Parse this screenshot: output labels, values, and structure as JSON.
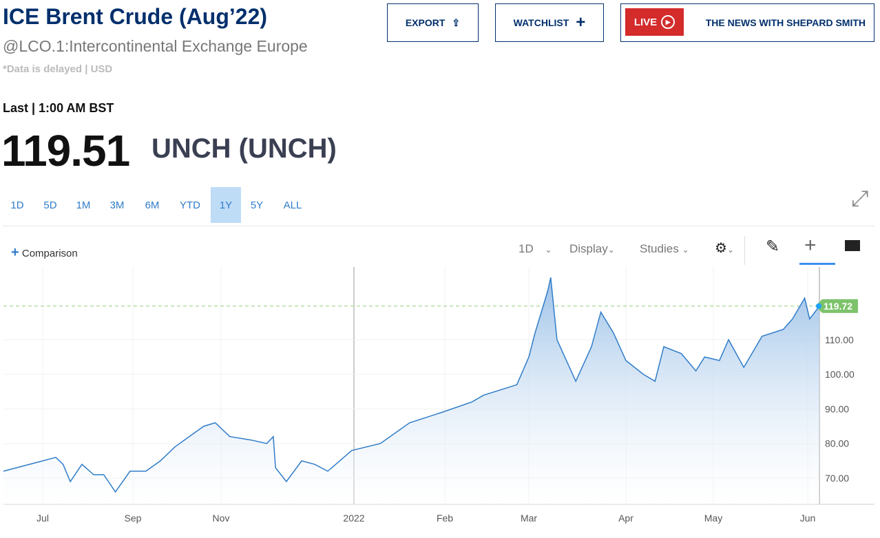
{
  "header": {
    "title": "ICE Brent Crude (Aug’22)",
    "subtitle": "@LCO.1:Intercontinental Exchange Europe",
    "delayed": "*Data is delayed | USD",
    "last_label": "Last | 1:00 AM BST",
    "price": "119.51",
    "change": "UNCH (UNCH)"
  },
  "buttons": {
    "export": "EXPORT",
    "watchlist": "WATCHLIST",
    "live": "LIVE",
    "news": "THE NEWS WITH SHEPARD SMITH"
  },
  "ranges": [
    "1D",
    "5D",
    "1M",
    "3M",
    "6M",
    "YTD",
    "1Y",
    "5Y",
    "ALL"
  ],
  "selected_range": "1Y",
  "toolbar": {
    "comparison": "Comparison",
    "interval": "1D",
    "display": "Display",
    "studies": "Studies"
  },
  "colors": {
    "brand": "#002f6c",
    "line": "#2f7cc9",
    "live": "#d42b2b",
    "last_badge": "#7dc36b",
    "selected_range_bg": "#bfdcf7"
  },
  "chart_data": {
    "type": "area",
    "x_ticks": [
      "Jul",
      "Sep",
      "Nov",
      "2022",
      "Feb",
      "Mar",
      "Apr",
      "May",
      "Jun"
    ],
    "y_ticks": [
      70,
      80,
      90,
      100,
      110
    ],
    "ylim": [
      63,
      130
    ],
    "last_value_label": "119.72",
    "last_value": 119.72,
    "grid": true,
    "points": [
      [
        "2021-06-22",
        72
      ],
      [
        "2021-07-01",
        75
      ],
      [
        "2021-07-10",
        76
      ],
      [
        "2021-07-15",
        74
      ],
      [
        "2021-07-20",
        69
      ],
      [
        "2021-07-28",
        74
      ],
      [
        "2021-08-05",
        71
      ],
      [
        "2021-08-12",
        71
      ],
      [
        "2021-08-20",
        66
      ],
      [
        "2021-08-30",
        72
      ],
      [
        "2021-09-10",
        72
      ],
      [
        "2021-09-20",
        75
      ],
      [
        "2021-09-30",
        79
      ],
      [
        "2021-10-10",
        82
      ],
      [
        "2021-10-20",
        85
      ],
      [
        "2021-10-28",
        86
      ],
      [
        "2021-11-05",
        82
      ],
      [
        "2021-11-15",
        81
      ],
      [
        "2021-11-22",
        80
      ],
      [
        "2021-11-25",
        82
      ],
      [
        "2021-11-26",
        73
      ],
      [
        "2021-12-01",
        69
      ],
      [
        "2021-12-08",
        75
      ],
      [
        "2021-12-14",
        74
      ],
      [
        "2021-12-20",
        72
      ],
      [
        "2021-12-31",
        78
      ],
      [
        "2022-01-10",
        80
      ],
      [
        "2022-01-20",
        86
      ],
      [
        "2022-01-31",
        89
      ],
      [
        "2022-02-10",
        92
      ],
      [
        "2022-02-14",
        94
      ],
      [
        "2022-02-25",
        97
      ],
      [
        "2022-03-01",
        105
      ],
      [
        "2022-03-03",
        112
      ],
      [
        "2022-03-07",
        124
      ],
      [
        "2022-03-08",
        128
      ],
      [
        "2022-03-10",
        110
      ],
      [
        "2022-03-16",
        98
      ],
      [
        "2022-03-21",
        108
      ],
      [
        "2022-03-24",
        118
      ],
      [
        "2022-03-28",
        112
      ],
      [
        "2022-04-01",
        104
      ],
      [
        "2022-04-07",
        100
      ],
      [
        "2022-04-11",
        98
      ],
      [
        "2022-04-14",
        108
      ],
      [
        "2022-04-20",
        106
      ],
      [
        "2022-04-25",
        101
      ],
      [
        "2022-04-28",
        105
      ],
      [
        "2022-05-03",
        104
      ],
      [
        "2022-05-06",
        110
      ],
      [
        "2022-05-11",
        102
      ],
      [
        "2022-05-17",
        111
      ],
      [
        "2022-05-24",
        113
      ],
      [
        "2022-05-27",
        116
      ],
      [
        "2022-05-31",
        122
      ],
      [
        "2022-06-02",
        116
      ],
      [
        "2022-06-07",
        119.72
      ]
    ]
  }
}
